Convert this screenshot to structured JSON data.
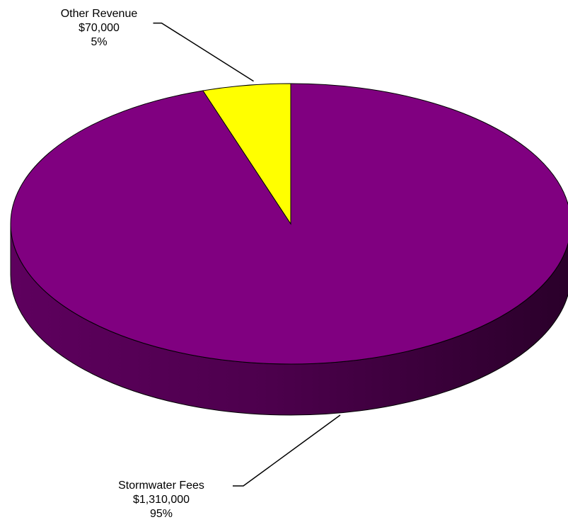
{
  "chart_data": {
    "type": "pie",
    "style": "3d",
    "legend": "none",
    "slices": [
      {
        "name": "Stormwater Fees",
        "value": 1310000,
        "value_label": "$1,310,000",
        "percent": 95,
        "percent_label": "95%",
        "color": "#800080"
      },
      {
        "name": "Other Revenue",
        "value": 70000,
        "value_label": "$70,000",
        "percent": 5,
        "percent_label": "5%",
        "color": "#ffff00"
      }
    ]
  }
}
